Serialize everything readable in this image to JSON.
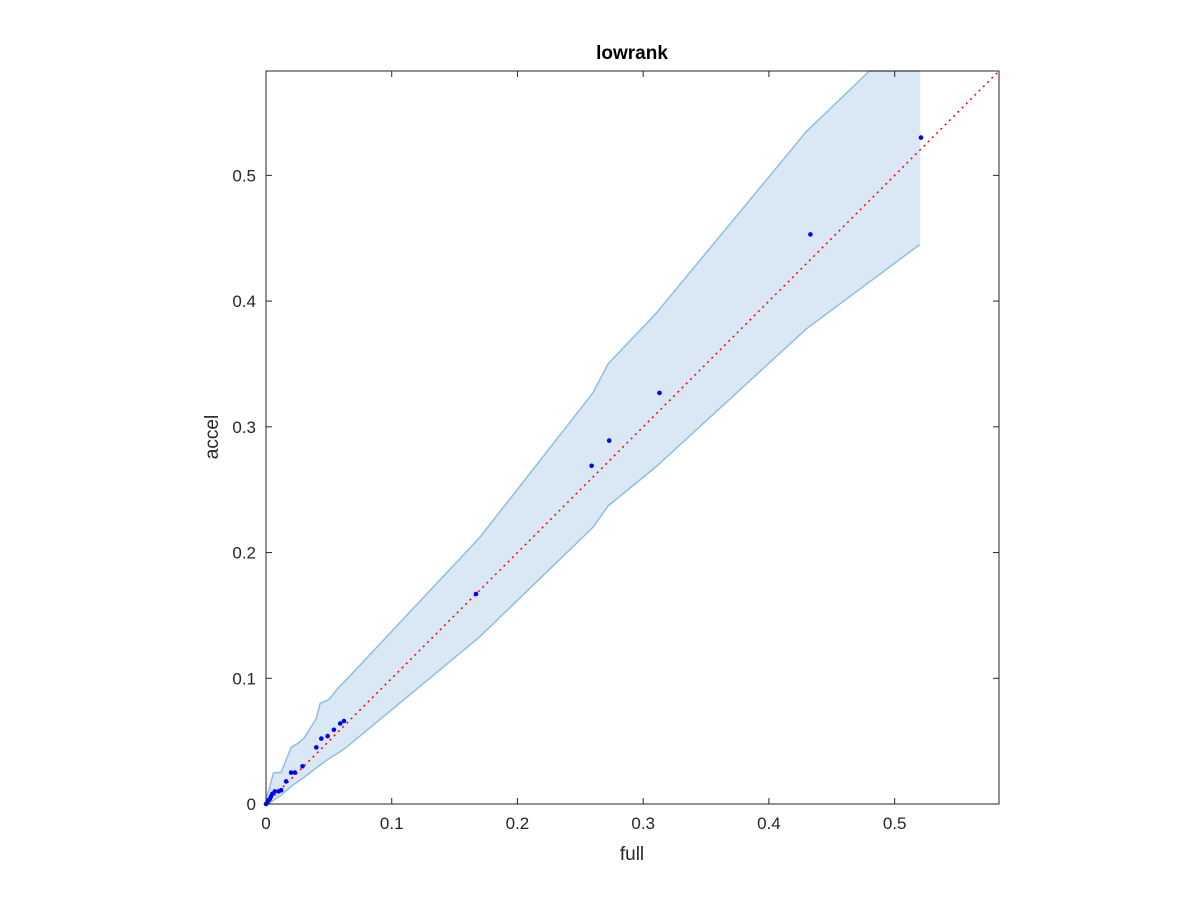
{
  "chart_data": {
    "type": "scatter",
    "title": "lowrank",
    "xlabel": "full",
    "ylabel": "accel",
    "xlim": [
      0,
      0.583
    ],
    "ylim": [
      0,
      0.583
    ],
    "grid": false,
    "x_ticks": [
      0,
      0.1,
      0.2,
      0.3,
      0.4,
      0.5
    ],
    "y_ticks": [
      0,
      0.1,
      0.2,
      0.3,
      0.4,
      0.5
    ],
    "x_tick_labels": [
      "0",
      "0.1",
      "0.2",
      "0.3",
      "0.4",
      "0.5"
    ],
    "y_tick_labels": [
      "0",
      "0.1",
      "0.2",
      "0.3",
      "0.4",
      "0.5"
    ],
    "reference_line": {
      "style": "dotted",
      "x": [
        0,
        0.583
      ],
      "y": [
        0,
        0.583
      ]
    },
    "band": {
      "upper": [
        [
          0,
          0.004
        ],
        [
          0.002,
          0.01
        ],
        [
          0.006,
          0.025
        ],
        [
          0.012,
          0.025
        ],
        [
          0.016,
          0.035
        ],
        [
          0.02,
          0.045
        ],
        [
          0.025,
          0.048
        ],
        [
          0.03,
          0.052
        ],
        [
          0.04,
          0.068
        ],
        [
          0.043,
          0.08
        ],
        [
          0.05,
          0.083
        ],
        [
          0.058,
          0.093
        ],
        [
          0.065,
          0.1
        ],
        [
          0.17,
          0.212
        ],
        [
          0.26,
          0.327
        ],
        [
          0.272,
          0.35
        ],
        [
          0.31,
          0.39
        ],
        [
          0.43,
          0.535
        ],
        [
          0.48,
          0.583
        ],
        [
          0.52,
          0.583
        ]
      ],
      "lower": [
        [
          0.52,
          0.445
        ],
        [
          0.43,
          0.378
        ],
        [
          0.31,
          0.268
        ],
        [
          0.272,
          0.237
        ],
        [
          0.26,
          0.22
        ],
        [
          0.17,
          0.133
        ],
        [
          0.065,
          0.046
        ],
        [
          0.058,
          0.041
        ],
        [
          0.05,
          0.036
        ],
        [
          0.043,
          0.031
        ],
        [
          0.03,
          0.021
        ],
        [
          0.02,
          0.014
        ],
        [
          0.012,
          0.007
        ],
        [
          0.006,
          0.003
        ],
        [
          0.002,
          0
        ],
        [
          0,
          0
        ]
      ],
      "color": "#d9e8f4",
      "edge_color": "#8fbfdf"
    },
    "series": [
      {
        "x": [
          0.0,
          0.001,
          0.002,
          0.003,
          0.004,
          0.005,
          0.007,
          0.01,
          0.012,
          0.016,
          0.02,
          0.023,
          0.029,
          0.04,
          0.044,
          0.049,
          0.054,
          0.059,
          0.062,
          0.167,
          0.259,
          0.273,
          0.313,
          0.433,
          0.521
        ],
        "y": [
          0.0,
          0.001,
          0.003,
          0.004,
          0.006,
          0.008,
          0.01,
          0.01,
          0.011,
          0.018,
          0.025,
          0.025,
          0.03,
          0.045,
          0.052,
          0.054,
          0.059,
          0.064,
          0.066,
          0.167,
          0.269,
          0.289,
          0.327,
          0.453,
          0.53
        ],
        "color": "#0000ff"
      }
    ],
    "colors": {
      "points": "#0000ff",
      "reference_line": "#ff0000",
      "axes": "#262626"
    }
  }
}
